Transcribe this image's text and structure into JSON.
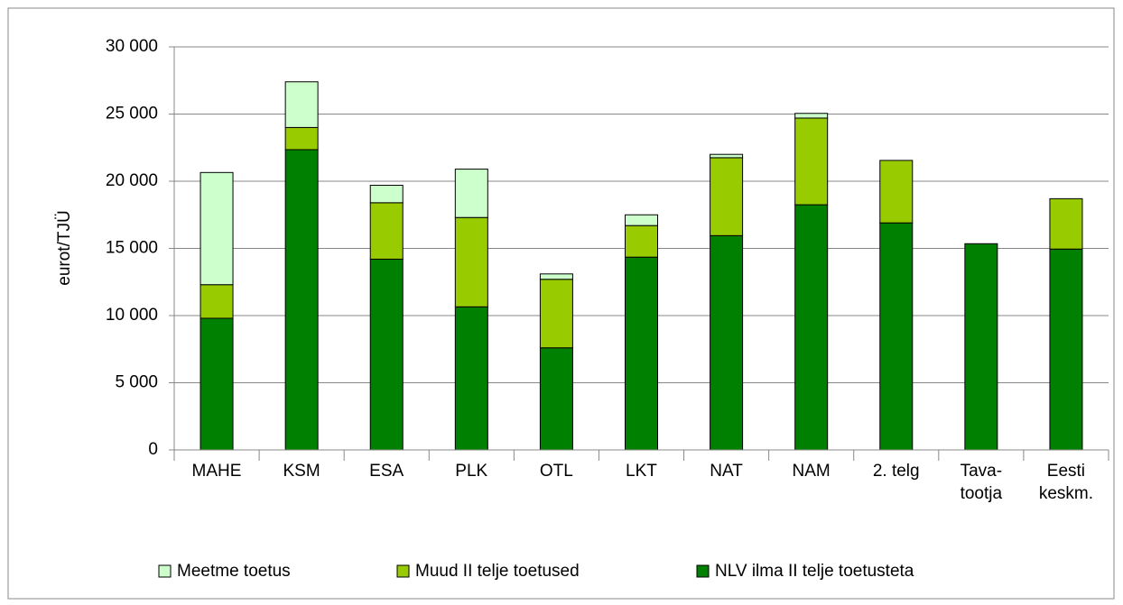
{
  "chart_data": {
    "type": "stacked_bar",
    "y_label": "eurot/TJÜ",
    "categories": [
      "MAHE",
      "KSM",
      "ESA",
      "PLK",
      "OTL",
      "LKT",
      "NAT",
      "NAM",
      "2. telg",
      "Tava-\ntootja",
      "Eesti\nkeskm."
    ],
    "series": [
      {
        "name": "Meetme toetus",
        "color": "#ccffcc",
        "values": [
          8350,
          3400,
          1300,
          3600,
          400,
          800,
          250,
          350,
          0,
          0,
          0
        ]
      },
      {
        "name": "Muud II telje toetused",
        "color": "#99cc00",
        "values": [
          2500,
          1650,
          4200,
          6650,
          5100,
          2350,
          5800,
          6450,
          4650,
          0,
          3750
        ]
      },
      {
        "name": "NLV ilma II telje toetusteta",
        "color": "#008000",
        "values": [
          9800,
          22350,
          14200,
          10650,
          7600,
          14350,
          15950,
          18250,
          16900,
          15350,
          14950
        ]
      }
    ],
    "ylim": [
      0,
      30000
    ],
    "yticks": [
      0,
      {
        "value": 5000,
        "label": "5 000"
      },
      {
        "value": 10000,
        "label": "10 000"
      },
      {
        "value": 15000,
        "label": "15 000"
      },
      {
        "value": 20000,
        "label": "20 000"
      },
      {
        "value": 25000,
        "label": "25 000"
      },
      {
        "value": 30000,
        "label": "30 000"
      }
    ],
    "grid": true,
    "legend": "bottom"
  }
}
